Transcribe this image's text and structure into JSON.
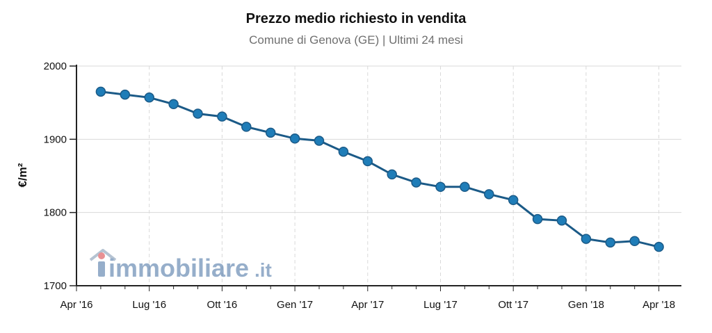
{
  "chart_data": {
    "type": "line",
    "title": "Prezzo medio richiesto in vendita",
    "subtitle": "Comune di Genova (GE) | Ultimi 24 mesi",
    "ylabel": "€/m²",
    "xlabel": "",
    "ylim": [
      1700,
      2000
    ],
    "yticks": [
      1700,
      1800,
      1900,
      2000
    ],
    "xtick_labels": [
      "Apr '16",
      "Lug '16",
      "Ott '16",
      "Gen '17",
      "Apr '17",
      "Lug '17",
      "Ott '17",
      "Gen '18",
      "Apr '18"
    ],
    "x": [
      "May 2016",
      "Jun 2016",
      "Jul 2016",
      "Aug 2016",
      "Sep 2016",
      "Oct 2016",
      "Nov 2016",
      "Dec 2016",
      "Jan 2017",
      "Feb 2017",
      "Mar 2017",
      "Apr 2017",
      "May 2017",
      "Jun 2017",
      "Jul 2017",
      "Aug 2017",
      "Sep 2017",
      "Oct 2017",
      "Nov 2017",
      "Dec 2017",
      "Jan 2018",
      "Feb 2018",
      "Mar 2018",
      "Apr 2018"
    ],
    "series": [
      {
        "values": [
          1965,
          1961,
          1957,
          1948,
          1935,
          1931,
          1917,
          1909,
          1901,
          1898,
          1883,
          1870,
          1852,
          1841,
          1835,
          1835,
          1825,
          1817,
          1791,
          1789,
          1764,
          1759,
          1761,
          1753
        ]
      }
    ],
    "grid": true,
    "colors": {
      "line": "#1b5a87",
      "marker": "#1f7db8",
      "grid": "#d9d9d9",
      "axis": "#222222"
    }
  },
  "watermark": {
    "text_before": "",
    "text_main": "immobiliare",
    "text_suffix": ".it"
  }
}
